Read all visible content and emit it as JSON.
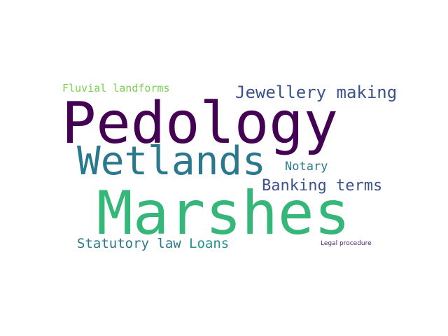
{
  "words": [
    {
      "id": "pedology",
      "text": "Pedology",
      "color": "#440154"
    },
    {
      "id": "marshes",
      "text": "Marshes",
      "color": "#35b779"
    },
    {
      "id": "wetlands",
      "text": "Wetlands",
      "color": "#2a788e"
    },
    {
      "id": "jewellery",
      "text": "Jewellery making",
      "color": "#3b528b"
    },
    {
      "id": "banking",
      "text": "Banking terms",
      "color": "#3b528b"
    },
    {
      "id": "statutory",
      "text": "Statutory law",
      "color": "#2a788e"
    },
    {
      "id": "loans",
      "text": "Loans",
      "color": "#21918c"
    },
    {
      "id": "notary",
      "text": "Notary",
      "color": "#2a788e"
    },
    {
      "id": "fluvial",
      "text": "Fluvial landforms",
      "color": "#7ad151"
    },
    {
      "id": "legal",
      "text": "Legal procedure",
      "color": "#482878"
    }
  ]
}
